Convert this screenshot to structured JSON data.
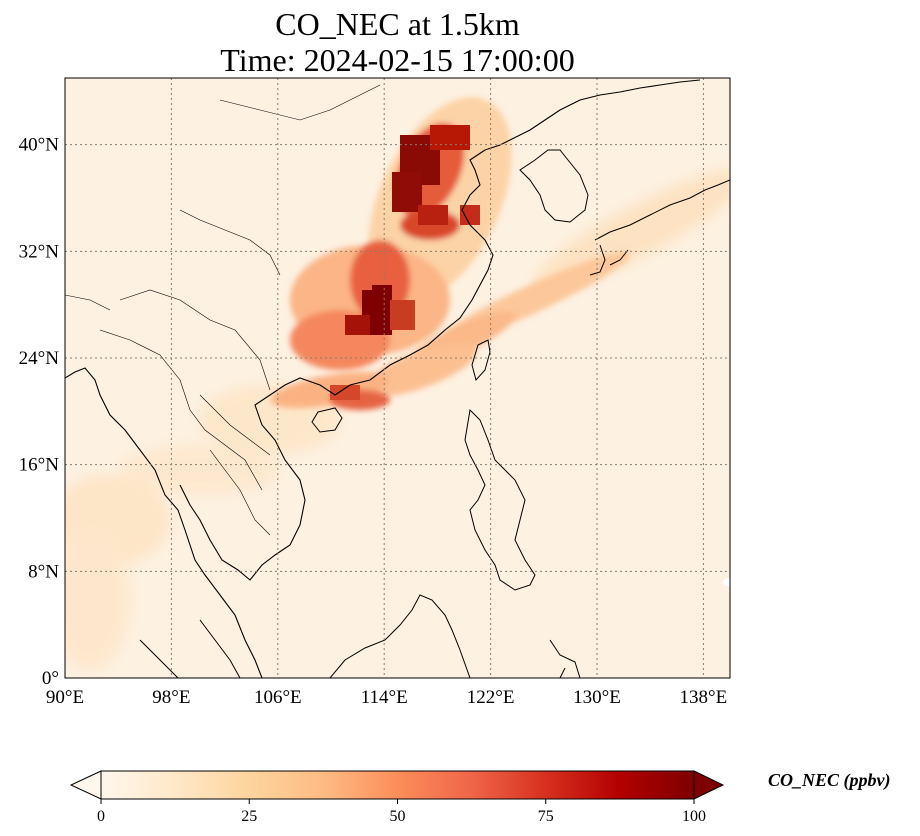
{
  "title_line1": "CO_NEC at 1.5km",
  "title_line2": "Time: 2024-02-15 17:00:00",
  "map": {
    "lon_range": [
      90,
      140
    ],
    "lat_range": [
      0,
      45
    ],
    "lon_ticks": [
      "90°E",
      "98°E",
      "106°E",
      "114°E",
      "122°E",
      "130°E",
      "138°E"
    ],
    "lat_ticks": [
      "0°",
      "8°N",
      "16°N",
      "24°N",
      "32°N",
      "40°N"
    ],
    "lon_tick_values": [
      90,
      98,
      106,
      114,
      122,
      130,
      138
    ],
    "lat_tick_values": [
      0,
      8,
      16,
      24,
      32,
      40
    ],
    "gridlines": "dotted"
  },
  "colorbar": {
    "label": "CO_NEC (ppbv)",
    "ticks": [
      "0",
      "25",
      "50",
      "75",
      "100"
    ],
    "range": [
      0,
      100
    ],
    "colormap": "OrRd",
    "extend": "both",
    "colors": [
      "#fff7ec",
      "#fee8c8",
      "#fdd49e",
      "#fdbb84",
      "#fc8d59",
      "#ef6548",
      "#d7301f",
      "#b30000",
      "#7f0000"
    ]
  }
}
